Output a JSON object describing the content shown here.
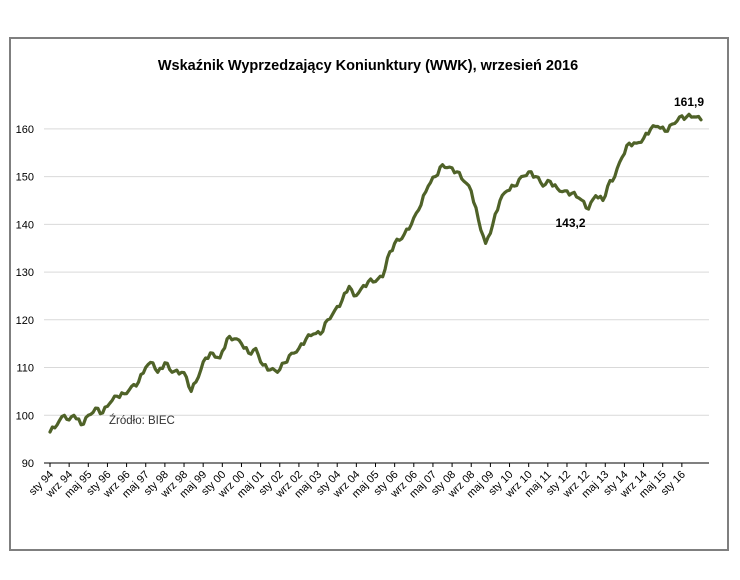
{
  "chart_data": {
    "type": "line",
    "title": "Wskaźnik Wyprzedzający Koniunktury (WWK),  wrzesień 2016",
    "xlabel": "",
    "ylabel": "",
    "ylim": [
      90,
      165
    ],
    "y_ticks": [
      90,
      100,
      110,
      120,
      130,
      140,
      150,
      160
    ],
    "grid": "horizontal",
    "legend": "none",
    "line_color": "#4f6228",
    "source_note": "Źródło: BIEC",
    "x_tick_labels": [
      "sty 94",
      "wrz 94",
      "maj 95",
      "sty 96",
      "wrz 96",
      "maj 97",
      "sty 98",
      "wrz 98",
      "maj 99",
      "sty 00",
      "wrz 00",
      "maj 01",
      "sty 02",
      "wrz 02",
      "maj 03",
      "sty 04",
      "wrz 04",
      "maj 05",
      "sty 06",
      "wrz 06",
      "maj 07",
      "sty 08",
      "wrz 08",
      "maj 09",
      "sty 10",
      "wrz 10",
      "maj 11",
      "sty 12",
      "wrz 12",
      "maj 13",
      "sty 14",
      "wrz 14",
      "maj 15",
      "sty 16"
    ],
    "annotations": [
      {
        "text": "143,2",
        "x": "2012-10",
        "y": 143.2
      },
      {
        "text": "161,9",
        "x": "2016-09",
        "y": 161.9
      }
    ],
    "series": [
      {
        "points": [
          [
            "1994-01",
            96.5
          ],
          [
            "1994-04",
            98
          ],
          [
            "1994-07",
            100
          ],
          [
            "1994-09",
            99
          ],
          [
            "1994-11",
            100
          ],
          [
            "1995-02",
            98
          ],
          [
            "1995-05",
            100
          ],
          [
            "1995-08",
            101.5
          ],
          [
            "1995-11",
            100.5
          ],
          [
            "1996-02",
            102.5
          ],
          [
            "1996-05",
            104
          ],
          [
            "1996-08",
            104.5
          ],
          [
            "1996-11",
            106
          ],
          [
            "1997-02",
            107
          ],
          [
            "1997-05",
            110
          ],
          [
            "1997-08",
            111
          ],
          [
            "1997-10",
            109
          ],
          [
            "1998-01",
            111
          ],
          [
            "1998-04",
            109
          ],
          [
            "1998-08",
            109
          ],
          [
            "1998-10",
            108
          ],
          [
            "1998-12",
            105
          ],
          [
            "1999-03",
            108
          ],
          [
            "1999-06",
            112
          ],
          [
            "1999-09",
            113
          ],
          [
            "1999-12",
            112
          ],
          [
            "2000-03",
            116
          ],
          [
            "2000-06",
            116
          ],
          [
            "2000-09",
            115
          ],
          [
            "2000-12",
            113
          ],
          [
            "2001-03",
            114
          ],
          [
            "2001-06",
            110.5
          ],
          [
            "2001-09",
            109.5
          ],
          [
            "2001-12",
            109
          ],
          [
            "2002-03",
            111
          ],
          [
            "2002-06",
            113
          ],
          [
            "2002-09",
            114
          ],
          [
            "2002-12",
            116
          ],
          [
            "2003-03",
            117
          ],
          [
            "2003-06",
            117
          ],
          [
            "2003-09",
            120
          ],
          [
            "2003-12",
            122
          ],
          [
            "2004-03",
            124
          ],
          [
            "2004-06",
            127
          ],
          [
            "2004-08",
            125
          ],
          [
            "2004-11",
            126.5
          ],
          [
            "2005-02",
            128
          ],
          [
            "2005-05",
            128
          ],
          [
            "2005-08",
            129
          ],
          [
            "2005-10",
            133
          ],
          [
            "2006-01",
            136
          ],
          [
            "2006-04",
            137
          ],
          [
            "2006-08",
            140
          ],
          [
            "2006-11",
            143
          ],
          [
            "2007-03",
            148
          ],
          [
            "2007-06",
            150
          ],
          [
            "2007-09",
            152.5
          ],
          [
            "2007-12",
            152
          ],
          [
            "2008-03",
            151
          ],
          [
            "2008-06",
            149
          ],
          [
            "2008-09",
            147
          ],
          [
            "2008-12",
            141
          ],
          [
            "2009-03",
            136
          ],
          [
            "2009-06",
            140
          ],
          [
            "2009-09",
            145
          ],
          [
            "2009-12",
            147
          ],
          [
            "2010-03",
            148
          ],
          [
            "2010-06",
            150
          ],
          [
            "2010-09",
            151
          ],
          [
            "2010-12",
            150
          ],
          [
            "2011-03",
            148
          ],
          [
            "2011-06",
            149
          ],
          [
            "2011-09",
            147.5
          ],
          [
            "2011-12",
            147
          ],
          [
            "2012-03",
            146.5
          ],
          [
            "2012-06",
            145.5
          ],
          [
            "2012-10",
            143.2
          ],
          [
            "2013-01",
            146
          ],
          [
            "2013-04",
            145
          ],
          [
            "2013-06",
            148
          ],
          [
            "2013-09",
            150
          ],
          [
            "2013-12",
            154
          ],
          [
            "2014-03",
            157
          ],
          [
            "2014-06",
            157
          ],
          [
            "2014-09",
            158
          ],
          [
            "2014-12",
            160
          ],
          [
            "2015-03",
            160.5
          ],
          [
            "2015-06",
            159.5
          ],
          [
            "2015-09",
            161
          ],
          [
            "2015-12",
            162.5
          ],
          [
            "2016-03",
            162.5
          ],
          [
            "2016-06",
            162.5
          ],
          [
            "2016-09",
            161.9
          ]
        ]
      }
    ]
  }
}
